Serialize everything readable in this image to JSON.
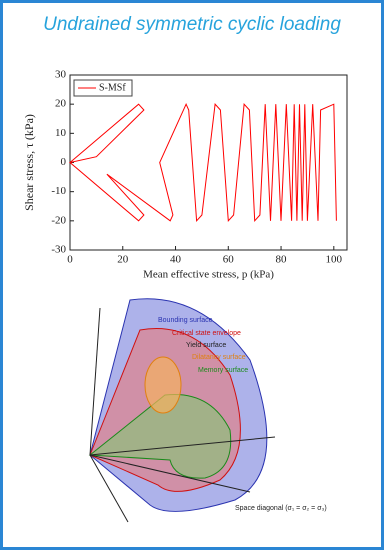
{
  "card": {
    "title": "Undrained symmetric cyclic loading"
  },
  "chart_data": {
    "type": "line",
    "x_label": "Mean effective stress, p (kPa)",
    "y_label": "Shear stress, τ (kPa)",
    "x": [
      0,
      26,
      28,
      10,
      0,
      26,
      28,
      14,
      38,
      39,
      34,
      44,
      45,
      48,
      50,
      55,
      57,
      60,
      62,
      66,
      68,
      70,
      72,
      74,
      76,
      78,
      80,
      82,
      84,
      85,
      86,
      87,
      88,
      89,
      90,
      92,
      94,
      95,
      100,
      101
    ],
    "series": [
      {
        "name": "S-MSf",
        "color": "#ff0000",
        "values": [
          0,
          20,
          18,
          2,
          0,
          -20,
          -18,
          -4,
          -20,
          -18,
          0,
          20,
          18,
          -20,
          -18,
          20,
          18,
          -20,
          -18,
          20,
          18,
          -20,
          -18,
          20,
          -20,
          20,
          -20,
          20,
          -20,
          20,
          -20,
          20,
          -20,
          20,
          -20,
          20,
          -20,
          18,
          20,
          -20
        ]
      }
    ],
    "xlim": [
      0,
      105
    ],
    "ylim": [
      -30,
      30
    ],
    "xticks": [
      0,
      20,
      40,
      60,
      80,
      100
    ],
    "yticks": [
      -30,
      -20,
      -10,
      0,
      10,
      20,
      30
    ],
    "legend": "upper-left"
  },
  "diagram": {
    "labels": [
      "Bounding surface",
      "Critical state envelope",
      "Yield surface",
      "Dilatancy surface",
      "Memory surface"
    ],
    "axis_label": "Space diagonal (σ₁ = σ₂ = σ₃)"
  }
}
